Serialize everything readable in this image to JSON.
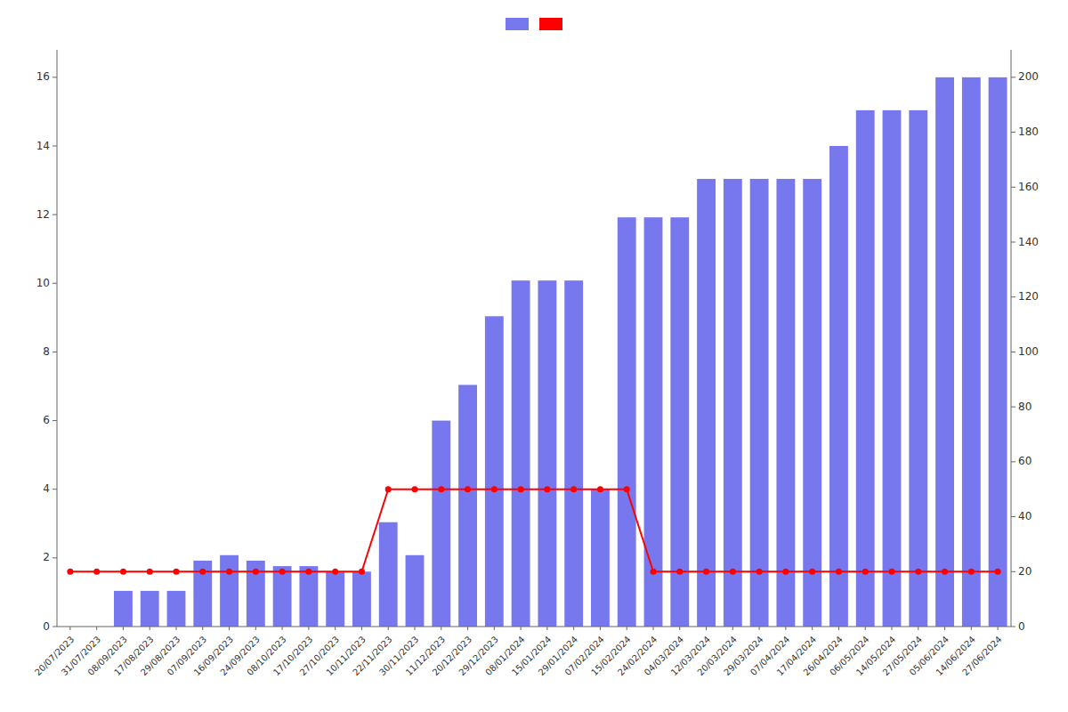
{
  "chart_data": {
    "type": "bar",
    "categories": [
      "20/07/2023",
      "31/07/2023",
      "08/09/2023",
      "17/08/2023",
      "29/08/2023",
      "07/09/2023",
      "16/09/2023",
      "24/09/2023",
      "08/10/2023",
      "17/10/2023",
      "27/10/2023",
      "10/11/2023",
      "22/11/2023",
      "30/11/2023",
      "11/12/2023",
      "20/12/2023",
      "29/12/2023",
      "08/01/2024",
      "15/01/2024",
      "29/01/2024",
      "07/02/2024",
      "15/02/2024",
      "24/02/2024",
      "04/03/2024",
      "12/03/2024",
      "20/03/2024",
      "29/03/2024",
      "07/04/2024",
      "17/04/2024",
      "26/04/2024",
      "06/05/2024",
      "14/05/2024",
      "27/05/2024",
      "05/06/2024",
      "14/06/2024",
      "27/06/2024"
    ],
    "series": [
      {
        "type": "bar",
        "color": "#7777ee",
        "values": [
          0,
          0,
          1.04,
          1.04,
          1.04,
          1.92,
          2.08,
          1.92,
          1.76,
          1.76,
          1.6,
          1.6,
          3.04,
          2.08,
          6.0,
          7.04,
          9.04,
          10.08,
          10.08,
          10.08,
          4.0,
          11.92,
          11.92,
          11.92,
          13.04,
          13.04,
          13.04,
          13.04,
          13.04,
          14.0,
          15.04,
          15.04,
          15.04,
          16.0,
          16.0,
          16.0
        ]
      },
      {
        "type": "line",
        "color": "#ff0000",
        "marker": "circle",
        "values": [
          1.6,
          1.6,
          1.6,
          1.6,
          1.6,
          1.6,
          1.6,
          1.6,
          1.6,
          1.6,
          1.6,
          1.6,
          4.0,
          4.0,
          4.0,
          4.0,
          4.0,
          4.0,
          4.0,
          4.0,
          4.0,
          4.0,
          1.6,
          1.6,
          1.6,
          1.6,
          1.6,
          1.6,
          1.6,
          1.6,
          1.6,
          1.6,
          1.6,
          1.6,
          1.6,
          1.6
        ]
      }
    ],
    "ylim": [
      0,
      16.8
    ],
    "yticks": [
      0,
      2,
      4,
      6,
      8,
      10,
      12,
      14,
      16
    ],
    "y2lim": [
      0,
      210
    ],
    "y2ticks": [
      0,
      20,
      40,
      60,
      80,
      100,
      120,
      140,
      160,
      180,
      200
    ],
    "grid": false,
    "legend": "top"
  }
}
